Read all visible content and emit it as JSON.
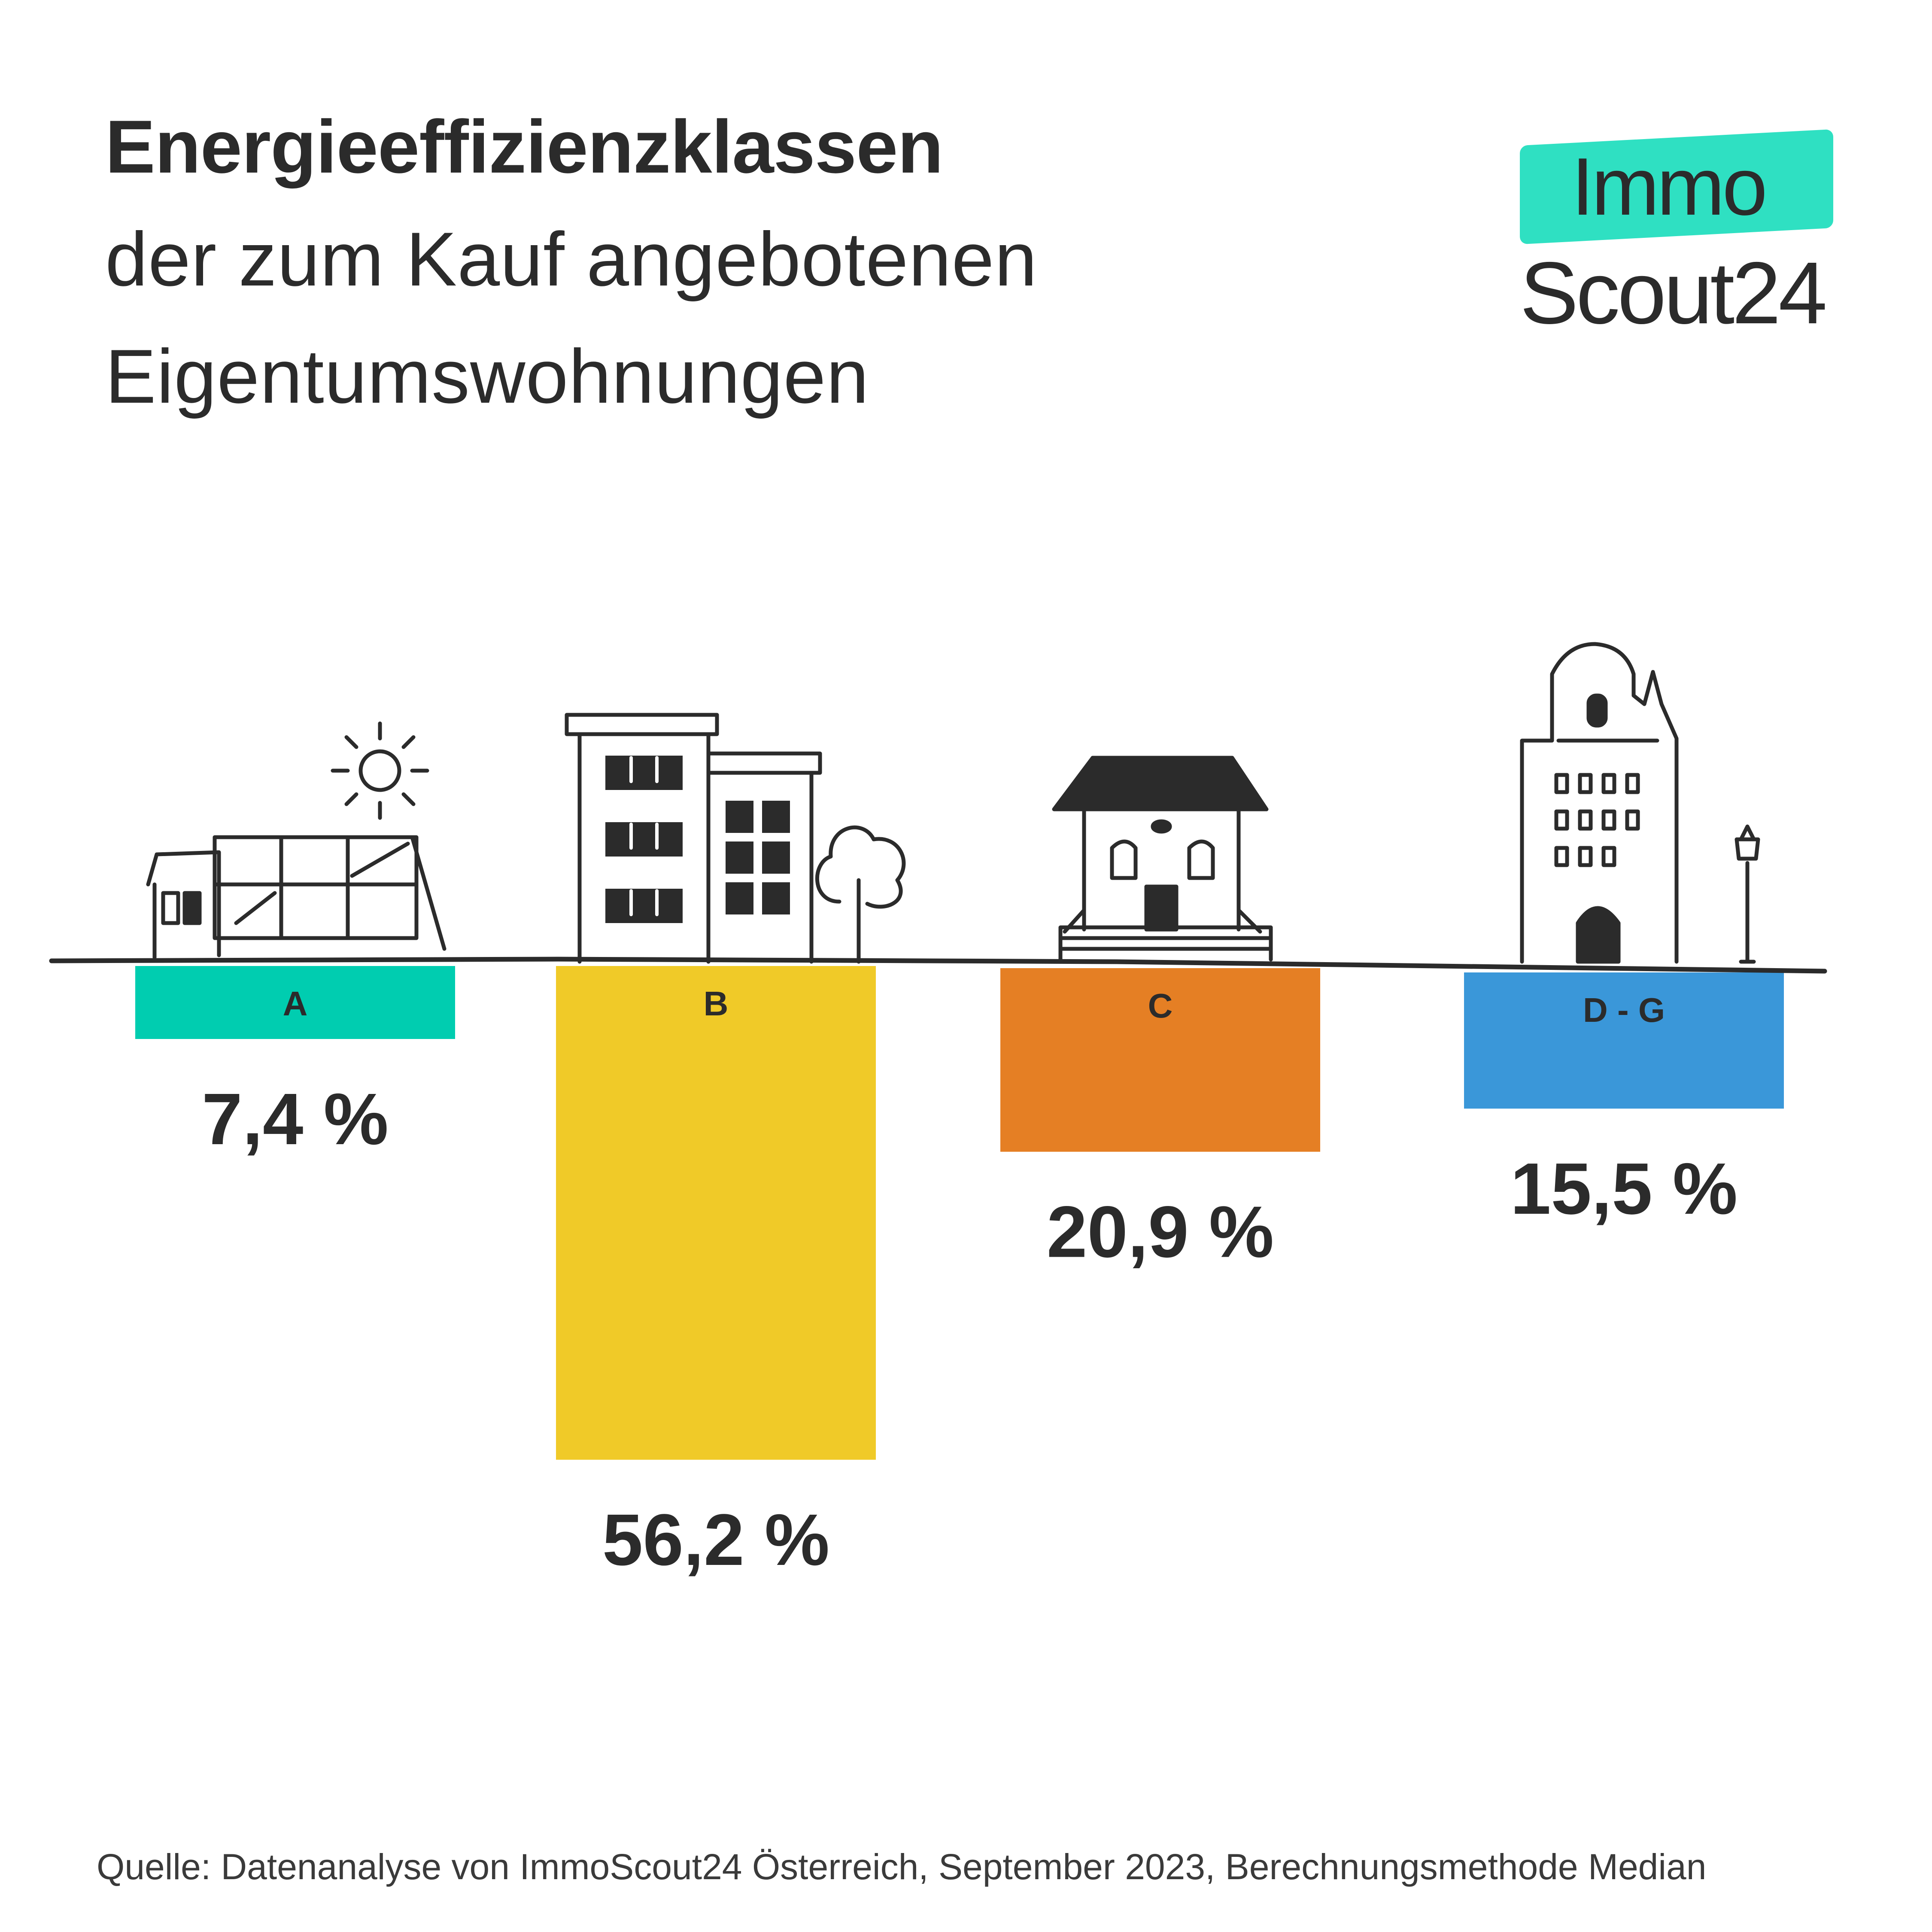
{
  "title": {
    "bold": "Energieeffizienzklassen",
    "line1": "der zum Kauf angebotenen",
    "line2": "Eigentumswohnungen"
  },
  "logo": {
    "line1": "Immo",
    "line2": "Scout24",
    "accent": "#2fe0c2"
  },
  "source": "Quelle: Datenanalyse von ImmoScout24 Österreich, September 2023, Berechnungsmethode Median",
  "chart_data": {
    "type": "bar",
    "orientation": "downward",
    "categories": [
      "A",
      "B",
      "C",
      "D - G"
    ],
    "values": [
      7.4,
      56.2,
      20.9,
      15.5
    ],
    "value_labels": [
      "7,4 %",
      "56,2 %",
      "20,9 %",
      "15,5 %"
    ],
    "colors": [
      "#00cdb0",
      "#f0ca28",
      "#e57f24",
      "#3a97d9"
    ],
    "icons": [
      "solar-house-icon",
      "apartment-buildings-icon",
      "villa-icon",
      "historic-townhouse-icon"
    ],
    "grid": false,
    "legend": false
  }
}
